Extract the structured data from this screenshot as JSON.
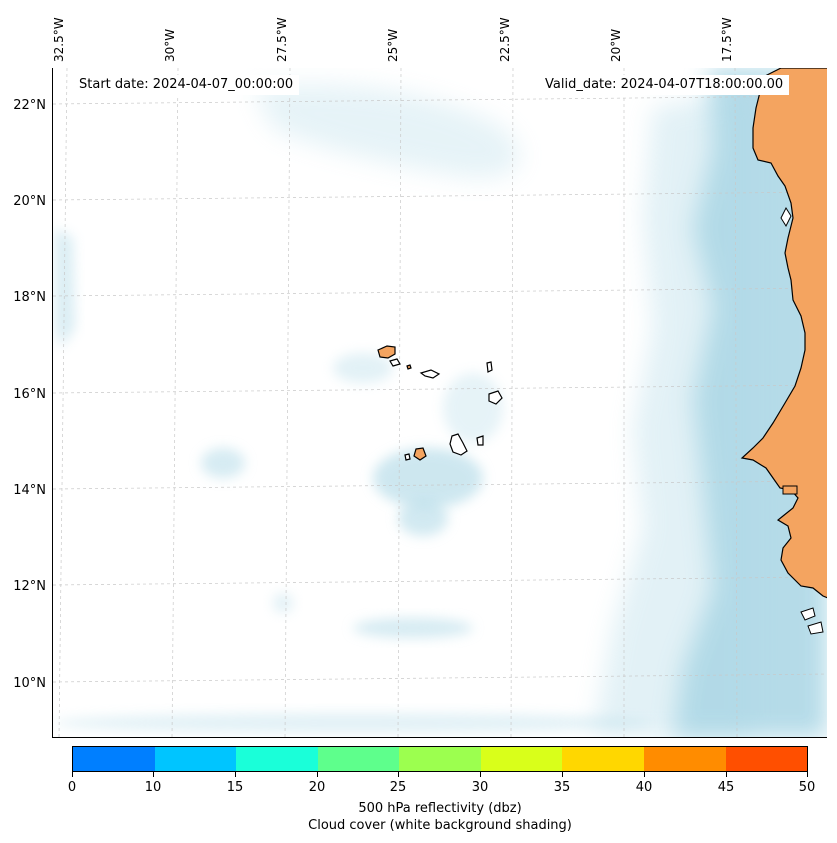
{
  "map": {
    "start_date": "Start date: 2024-04-07_00:00:00",
    "valid_date": "Valid_date: 2024-04-07T18:00:00.00",
    "lon_labels": [
      "32.5°W",
      "30°W",
      "27.5°W",
      "25°W",
      "22.5°W",
      "20°W",
      "17.5°W"
    ],
    "lat_labels": [
      "22°N",
      "20°N",
      "18°N",
      "16°N",
      "14°N",
      "12°N",
      "10°N"
    ],
    "land_color": "#f4a460",
    "cloud_color": "#add8e6",
    "ocean_color": "#ffffff",
    "gridlines": true
  },
  "colorbar": {
    "colors": [
      "#007fff",
      "#00c5ff",
      "#1affd9",
      "#5eff8c",
      "#9cff4f",
      "#d9ff1a",
      "#ffd700",
      "#ff8c00",
      "#ff4f00"
    ],
    "ticks": [
      "0",
      "10",
      "15",
      "20",
      "25",
      "30",
      "35",
      "40",
      "45",
      "50"
    ],
    "title_line1": "500 hPa reflectivity (dbz)",
    "title_line2": "Cloud cover (white background shading)"
  }
}
